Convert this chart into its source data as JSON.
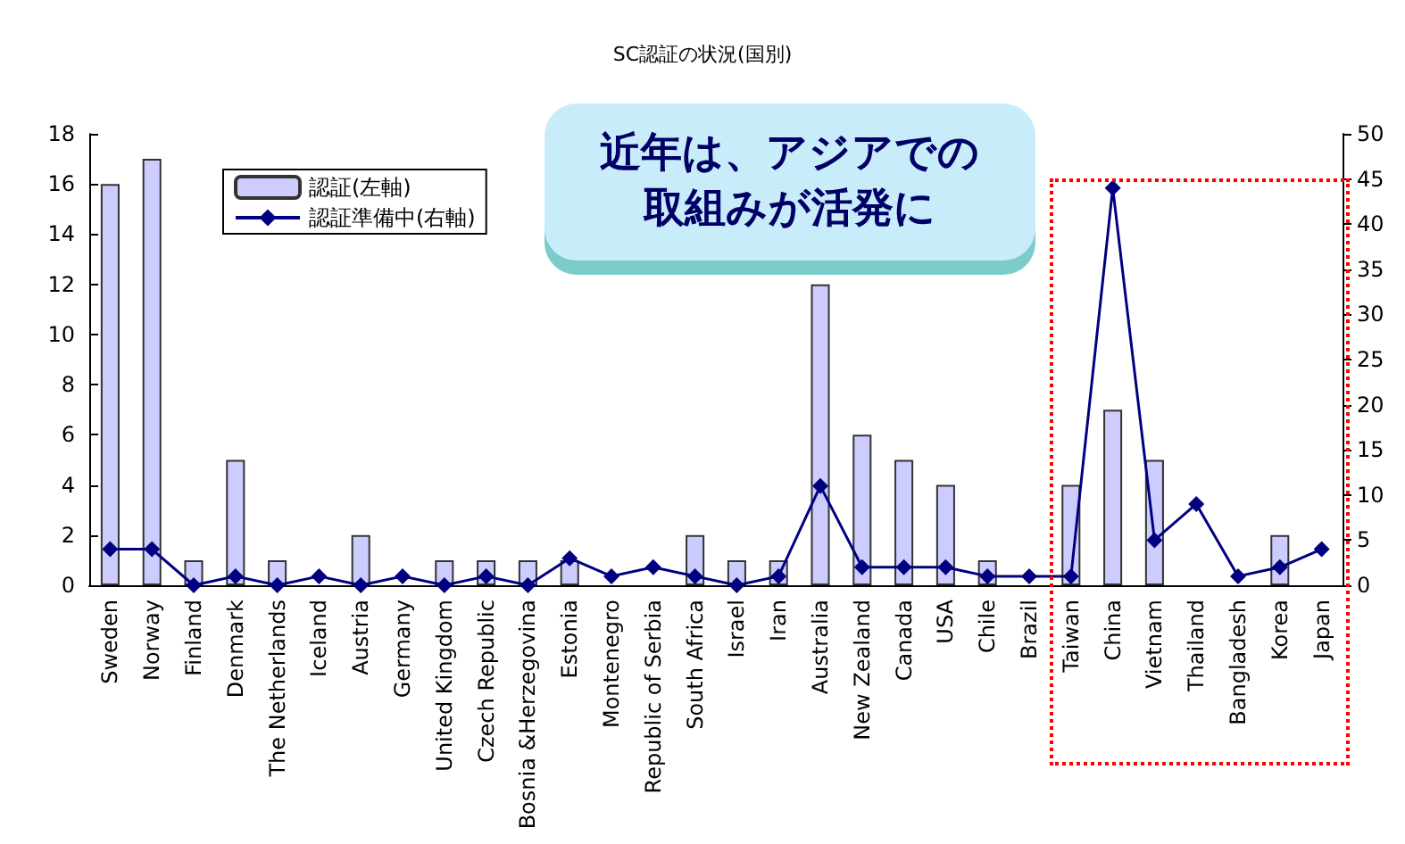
{
  "chart_data": {
    "type": "bar",
    "title": "SC認証の状況(国別)",
    "categories": [
      "Sweden",
      "Norway",
      "Finland",
      "Denmark",
      "The Netherlands",
      "Iceland",
      "Austria",
      "Germany",
      "United Kingdom",
      "Czech Republic",
      "Bosnia &Herzegovina",
      "Estonia",
      "Montenegro",
      "Republic of Serbia",
      "South Africa",
      "Israel",
      "Iran",
      "Australia",
      "New Zealand",
      "Canada",
      "USA",
      "Chile",
      "Brazil",
      "Taiwan",
      "China",
      "Vietnam",
      "Thailand",
      "Bangladesh",
      "Korea",
      "Japan"
    ],
    "series": [
      {
        "name": "認証(左軸)",
        "color": "#ccccff",
        "values": [
          16,
          17,
          1,
          5,
          1,
          0,
          2,
          0,
          1,
          1,
          1,
          1,
          0,
          0,
          2,
          1,
          1,
          12,
          6,
          5,
          4,
          1,
          0,
          4,
          7,
          5,
          0,
          0,
          2,
          0
        ]
      },
      {
        "name": "認証準備中(右軸)",
        "type": "line",
        "axis": "y2",
        "color": "#000080",
        "values": [
          4,
          4,
          0,
          1,
          0,
          1,
          0,
          1,
          0,
          1,
          0,
          3,
          1,
          2,
          1,
          0,
          1,
          11,
          2,
          2,
          2,
          1,
          1,
          1,
          44,
          5,
          9,
          1,
          2,
          4
        ]
      }
    ],
    "ylim": [
      0,
      18
    ],
    "yticks": [
      0,
      2,
      4,
      6,
      8,
      10,
      12,
      14,
      16,
      18
    ],
    "y2lim": [
      0,
      50
    ],
    "y2ticks": [
      0,
      5,
      10,
      15,
      20,
      25,
      30,
      35,
      40,
      45,
      50
    ],
    "legend": "top left",
    "marker": "diamond",
    "grid": false,
    "annotations": [
      "近年は、アジアでの取組みが活発に"
    ]
  }
}
